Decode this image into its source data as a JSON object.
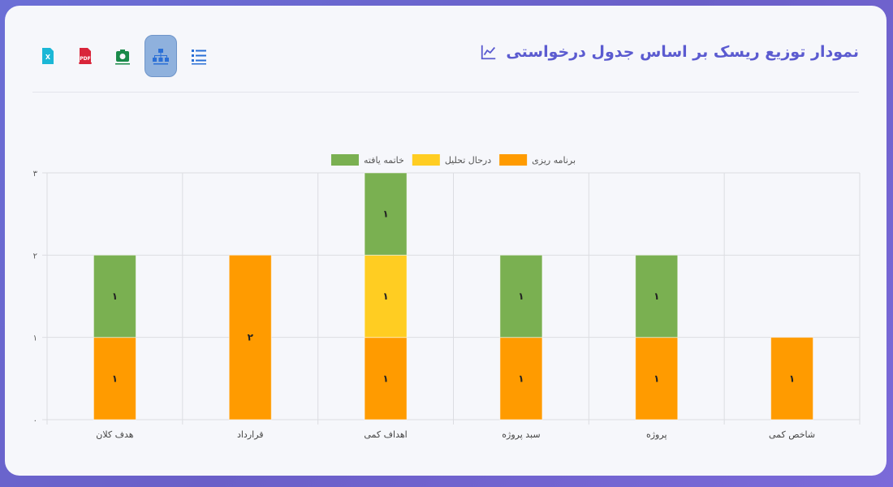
{
  "header": {
    "title": "نمودار توزیع ریسک بر اساس جدول درخواستی",
    "title_icon": "line-chart-icon",
    "toolbar": [
      {
        "name": "excel-export-button",
        "icon": "excel-icon",
        "color": "#1bb7d6",
        "active": false
      },
      {
        "name": "pdf-export-button",
        "icon": "pdf-icon",
        "color": "#d9253a",
        "active": false
      },
      {
        "name": "screenshot-button",
        "icon": "camera-icon",
        "color": "#1a8a4a",
        "active": false
      },
      {
        "name": "hierarchy-view-button",
        "icon": "sitemap-icon",
        "color": "#2a6fd6",
        "active": true
      },
      {
        "name": "list-view-button",
        "icon": "list-icon",
        "color": "#2a6fd6",
        "active": false
      }
    ]
  },
  "chart_data": {
    "type": "bar",
    "stacked": true,
    "categories": [
      "هدف کلان",
      "قرارداد",
      "اهداف کمی",
      "سبد پروژه",
      "پروژه",
      "شاخص کمی"
    ],
    "series": [
      {
        "name": "برنامه ریزی",
        "color": "#ff9b00",
        "values": [
          1,
          2,
          1,
          1,
          1,
          1
        ]
      },
      {
        "name": "درحال تحلیل",
        "color": "#ffcd22",
        "values": [
          0,
          0,
          1,
          0,
          0,
          0
        ]
      },
      {
        "name": "خاتمه یافته",
        "color": "#7ab051",
        "values": [
          1,
          0,
          1,
          1,
          1,
          0
        ]
      }
    ],
    "ylim": [
      0,
      3
    ],
    "yticks": [
      "۰",
      "۱",
      "۲",
      "۳"
    ],
    "grid": true,
    "legend": "top-center",
    "data_labels": true
  }
}
